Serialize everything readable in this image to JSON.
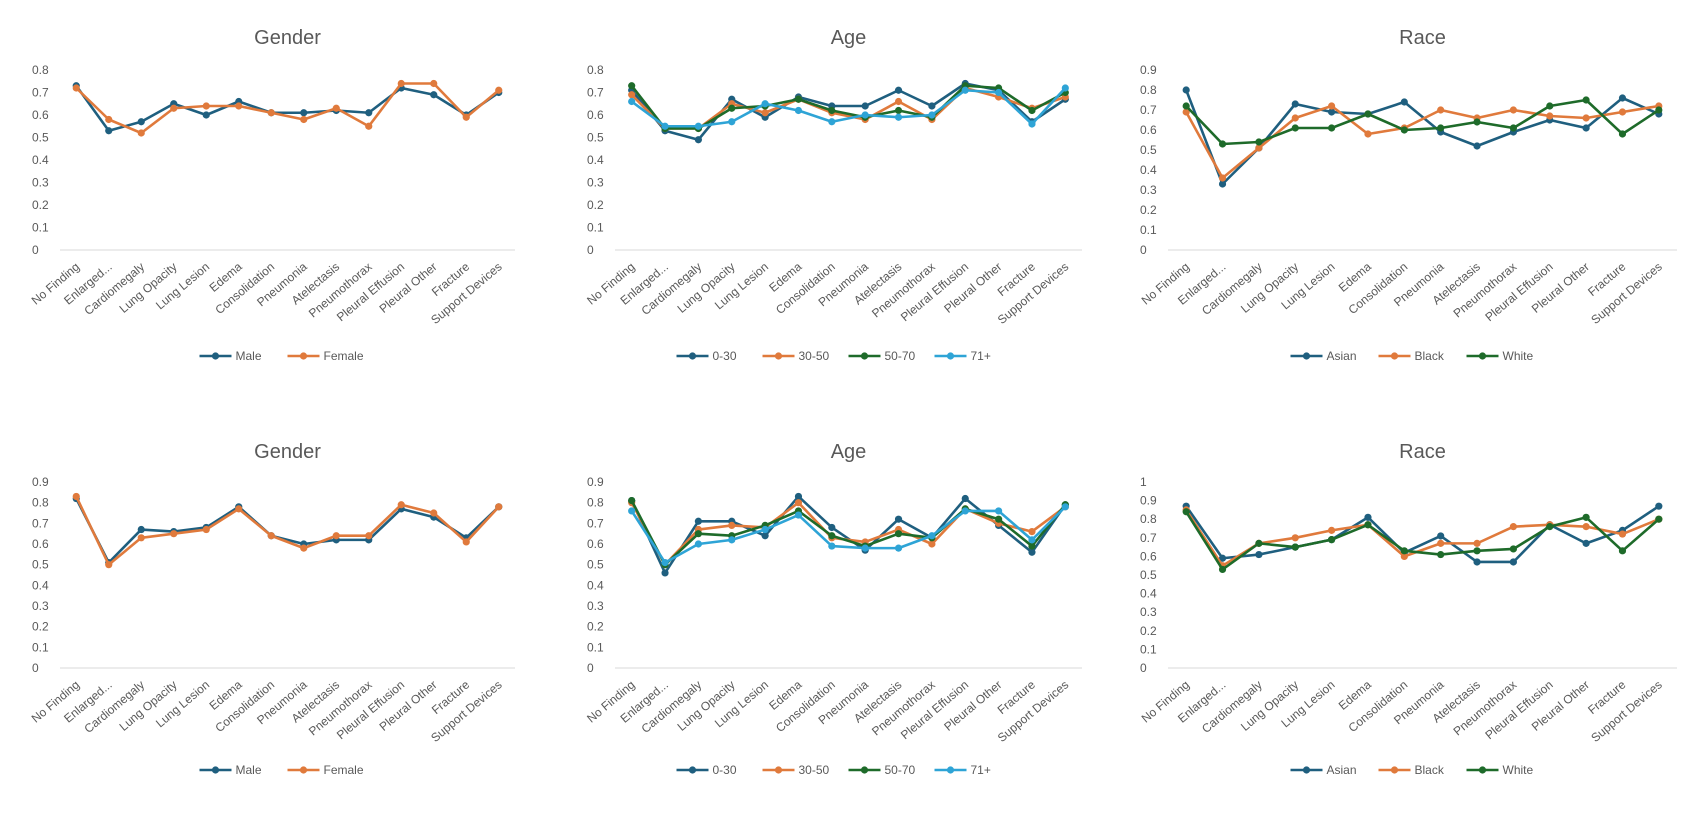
{
  "chart_data": [
    {
      "type": "line",
      "title": "Gender",
      "ylim": [
        0,
        0.8
      ],
      "ytick_step": 0.1,
      "yticks": [
        "0",
        "0.1",
        "0.2",
        "0.3",
        "0.4",
        "0.5",
        "0.6",
        "0.7",
        "0.8"
      ],
      "grid": false,
      "legend": "bottom",
      "categories": [
        "No Finding",
        "Enlarged...",
        "Cardiomegaly",
        "Lung Opacity",
        "Lung Lesion",
        "Edema",
        "Consolidation",
        "Pneumonia",
        "Atelectasis",
        "Pneumothorax",
        "Pleural Effusion",
        "Pleural Other",
        "Fracture",
        "Support Devices"
      ],
      "series": [
        {
          "name": "Male",
          "color": "#1f5f7f",
          "values": [
            0.73,
            0.53,
            0.57,
            0.65,
            0.6,
            0.66,
            0.61,
            0.61,
            0.62,
            0.61,
            0.72,
            0.69,
            0.6,
            0.7
          ]
        },
        {
          "name": "Female",
          "color": "#e07a3c",
          "values": [
            0.72,
            0.58,
            0.52,
            0.63,
            0.64,
            0.64,
            0.61,
            0.58,
            0.63,
            0.55,
            0.74,
            0.74,
            0.59,
            0.71
          ]
        }
      ]
    },
    {
      "type": "line",
      "title": "Age",
      "ylim": [
        0,
        0.8
      ],
      "ytick_step": 0.1,
      "yticks": [
        "0",
        "0.1",
        "0.2",
        "0.3",
        "0.4",
        "0.5",
        "0.6",
        "0.7",
        "0.8"
      ],
      "grid": false,
      "legend": "bottom",
      "categories": [
        "No Finding",
        "Enlarged...",
        "Cardiomegaly",
        "Lung Opacity",
        "Lung Lesion",
        "Edema",
        "Consolidation",
        "Pneumonia",
        "Atelectasis",
        "Pneumothorax",
        "Pleural Effusion",
        "Pleural Other",
        "Fracture",
        "Support Devices"
      ],
      "series": [
        {
          "name": "0-30",
          "color": "#1f5f7f",
          "values": [
            0.71,
            0.53,
            0.49,
            0.67,
            0.59,
            0.68,
            0.64,
            0.64,
            0.71,
            0.64,
            0.74,
            0.71,
            0.57,
            0.67
          ]
        },
        {
          "name": "30-50",
          "color": "#e07a3c",
          "values": [
            0.69,
            0.54,
            0.54,
            0.65,
            0.61,
            0.67,
            0.61,
            0.58,
            0.66,
            0.58,
            0.72,
            0.68,
            0.63,
            0.68
          ]
        },
        {
          "name": "50-70",
          "color": "#1e6b2a",
          "values": [
            0.73,
            0.54,
            0.54,
            0.63,
            0.64,
            0.67,
            0.62,
            0.59,
            0.62,
            0.59,
            0.73,
            0.72,
            0.62,
            0.7
          ]
        },
        {
          "name": "71+",
          "color": "#2ea4d6",
          "values": [
            0.66,
            0.55,
            0.55,
            0.57,
            0.65,
            0.62,
            0.57,
            0.6,
            0.59,
            0.6,
            0.71,
            0.7,
            0.56,
            0.72
          ]
        }
      ]
    },
    {
      "type": "line",
      "title": "Race",
      "ylim": [
        0,
        0.9
      ],
      "ytick_step": 0.1,
      "yticks": [
        "0",
        "0.1",
        "0.2",
        "0.3",
        "0.4",
        "0.5",
        "0.6",
        "0.7",
        "0.8",
        "0.9"
      ],
      "grid": false,
      "legend": "bottom",
      "categories": [
        "No Finding",
        "Enlarged...",
        "Cardiomegaly",
        "Lung Opacity",
        "Lung Lesion",
        "Edema",
        "Consolidation",
        "Pneumonia",
        "Atelectasis",
        "Pneumothorax",
        "Pleural Effusion",
        "Pleural Other",
        "Fracture",
        "Support Devices"
      ],
      "series": [
        {
          "name": "Asian",
          "color": "#1f5f7f",
          "values": [
            0.8,
            0.33,
            0.51,
            0.73,
            0.69,
            0.68,
            0.74,
            0.59,
            0.52,
            0.59,
            0.65,
            0.61,
            0.76,
            0.68
          ]
        },
        {
          "name": "Black",
          "color": "#e07a3c",
          "values": [
            0.69,
            0.36,
            0.51,
            0.66,
            0.72,
            0.58,
            0.61,
            0.7,
            0.66,
            0.7,
            0.67,
            0.66,
            0.69,
            0.72
          ]
        },
        {
          "name": "White",
          "color": "#1e6b2a",
          "values": [
            0.72,
            0.53,
            0.54,
            0.61,
            0.61,
            0.68,
            0.6,
            0.61,
            0.64,
            0.61,
            0.72,
            0.75,
            0.58,
            0.7
          ]
        }
      ]
    },
    {
      "type": "line",
      "title": "Gender",
      "ylim": [
        0,
        0.9
      ],
      "ytick_step": 0.1,
      "yticks": [
        "0",
        "0.1",
        "0.2",
        "0.3",
        "0.4",
        "0.5",
        "0.6",
        "0.7",
        "0.8",
        "0.9"
      ],
      "grid": false,
      "legend": "bottom",
      "categories": [
        "No Finding",
        "Enlarged...",
        "Cardiomegaly",
        "Lung Opacity",
        "Lung Lesion",
        "Edema",
        "Consolidation",
        "Pneumonia",
        "Atelectasis",
        "Pneumothorax",
        "Pleural Effusion",
        "Pleural Other",
        "Fracture",
        "Support Devices"
      ],
      "series": [
        {
          "name": "Male",
          "color": "#1f5f7f",
          "values": [
            0.82,
            0.51,
            0.67,
            0.66,
            0.68,
            0.78,
            0.64,
            0.6,
            0.62,
            0.62,
            0.77,
            0.73,
            0.63,
            0.78
          ]
        },
        {
          "name": "Female",
          "color": "#e07a3c",
          "values": [
            0.83,
            0.5,
            0.63,
            0.65,
            0.67,
            0.77,
            0.64,
            0.58,
            0.64,
            0.64,
            0.79,
            0.75,
            0.61,
            0.78
          ]
        }
      ]
    },
    {
      "type": "line",
      "title": "Age",
      "ylim": [
        0,
        0.9
      ],
      "ytick_step": 0.1,
      "yticks": [
        "0",
        "0.1",
        "0.2",
        "0.3",
        "0.4",
        "0.5",
        "0.6",
        "0.7",
        "0.8",
        "0.9"
      ],
      "grid": false,
      "legend": "bottom",
      "categories": [
        "No Finding",
        "Enlarged...",
        "Cardiomegaly",
        "Lung Opacity",
        "Lung Lesion",
        "Edema",
        "Consolidation",
        "Pneumonia",
        "Atelectasis",
        "Pneumothorax",
        "Pleural Effusion",
        "Pleural Other",
        "Fracture",
        "Support Devices"
      ],
      "series": [
        {
          "name": "0-30",
          "color": "#1f5f7f",
          "values": [
            0.81,
            0.46,
            0.71,
            0.71,
            0.64,
            0.83,
            0.68,
            0.57,
            0.72,
            0.63,
            0.82,
            0.69,
            0.56,
            0.79
          ]
        },
        {
          "name": "30-50",
          "color": "#e07a3c",
          "values": [
            0.8,
            0.5,
            0.67,
            0.69,
            0.68,
            0.8,
            0.63,
            0.61,
            0.67,
            0.6,
            0.77,
            0.7,
            0.66,
            0.78
          ]
        },
        {
          "name": "50-70",
          "color": "#1e6b2a",
          "values": [
            0.81,
            0.5,
            0.65,
            0.64,
            0.69,
            0.76,
            0.64,
            0.59,
            0.65,
            0.63,
            0.77,
            0.72,
            0.59,
            0.79
          ]
        },
        {
          "name": "71+",
          "color": "#2ea4d6",
          "values": [
            0.76,
            0.51,
            0.6,
            0.62,
            0.67,
            0.74,
            0.59,
            0.58,
            0.58,
            0.64,
            0.76,
            0.76,
            0.62,
            0.78
          ]
        }
      ]
    },
    {
      "type": "line",
      "title": "Race",
      "ylim": [
        0,
        1
      ],
      "ytick_step": 0.1,
      "yticks": [
        "0",
        "0.1",
        "0.2",
        "0.3",
        "0.4",
        "0.5",
        "0.6",
        "0.7",
        "0.8",
        "0.9",
        "1"
      ],
      "grid": false,
      "legend": "bottom",
      "categories": [
        "No Finding",
        "Enlarged...",
        "Cardiomegaly",
        "Lung Opacity",
        "Lung Lesion",
        "Edema",
        "Consolidation",
        "Pneumonia",
        "Atelectasis",
        "Pneumothorax",
        "Pleural Effusion",
        "Pleural Other",
        "Fracture",
        "Support Devices"
      ],
      "series": [
        {
          "name": "Asian",
          "color": "#1f5f7f",
          "values": [
            0.87,
            0.59,
            0.61,
            0.65,
            0.69,
            0.81,
            0.62,
            0.71,
            0.57,
            0.57,
            0.77,
            0.67,
            0.74,
            0.87
          ]
        },
        {
          "name": "Black",
          "color": "#e07a3c",
          "values": [
            0.85,
            0.55,
            0.67,
            0.7,
            0.74,
            0.77,
            0.6,
            0.67,
            0.67,
            0.76,
            0.77,
            0.76,
            0.72,
            0.8
          ]
        },
        {
          "name": "White",
          "color": "#1e6b2a",
          "values": [
            0.84,
            0.53,
            0.67,
            0.65,
            0.69,
            0.77,
            0.63,
            0.61,
            0.63,
            0.64,
            0.76,
            0.81,
            0.63,
            0.8
          ]
        }
      ]
    }
  ]
}
